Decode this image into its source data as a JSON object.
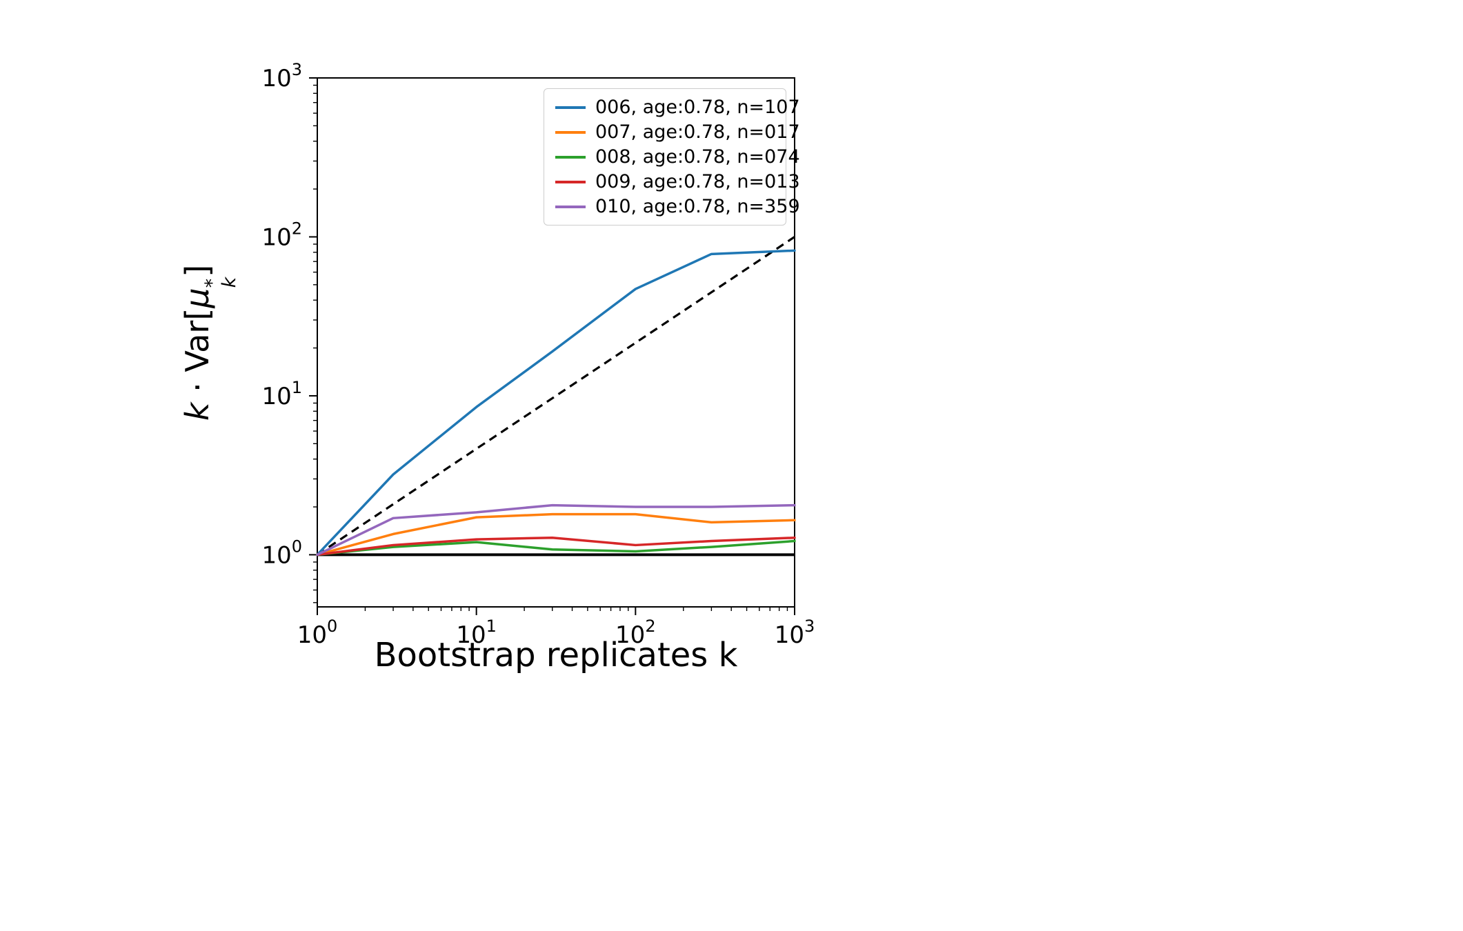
{
  "figure": {
    "background": "#ffffff"
  },
  "chart_data": {
    "type": "line",
    "title": "",
    "xlabel": "Bootstrap replicates k",
    "ylabel": "k · Var[μ*ₖ]",
    "ylabel_parts": {
      "pre": "k",
      "dot": " · ",
      "func": "Var[",
      "mu": "μ",
      "sup": "*",
      "sub": "k",
      "close": "]"
    },
    "x_scale": "log",
    "y_scale": "log",
    "xlim": [
      1,
      1000
    ],
    "ylim": [
      0.47,
      1000
    ],
    "x_ticks": [
      1,
      10,
      100,
      1000
    ],
    "y_ticks": [
      1,
      10,
      100,
      1000
    ],
    "tick_label_base": "10",
    "grid": false,
    "legend_position": "upper right",
    "x": [
      1,
      3,
      10,
      30,
      100,
      300,
      1000
    ],
    "series": [
      {
        "name": "006, age:0.78, n=107",
        "color": "#1f77b4",
        "values": [
          1.0,
          3.2,
          8.5,
          19,
          47,
          78,
          82
        ]
      },
      {
        "name": "007, age:0.78, n=017",
        "color": "#ff7f0e",
        "values": [
          1.0,
          1.35,
          1.72,
          1.8,
          1.8,
          1.6,
          1.65
        ]
      },
      {
        "name": "008, age:0.78, n=074",
        "color": "#2ca02c",
        "values": [
          1.0,
          1.12,
          1.2,
          1.08,
          1.05,
          1.12,
          1.22
        ]
      },
      {
        "name": "009, age:0.78, n=013",
        "color": "#d62728",
        "values": [
          1.0,
          1.15,
          1.25,
          1.28,
          1.15,
          1.22,
          1.28
        ]
      },
      {
        "name": "010, age:0.78, n=359",
        "color": "#9467bd",
        "values": [
          1.0,
          1.7,
          1.85,
          2.05,
          2.0,
          2.0,
          2.05
        ]
      }
    ],
    "reference_lines": [
      {
        "name": "linear-growth-dashed",
        "style": "dashed",
        "color": "#000000",
        "points": [
          [
            1,
            1
          ],
          [
            1000,
            100
          ]
        ]
      },
      {
        "name": "baseline-solid",
        "style": "solid",
        "color": "#000000",
        "points": [
          [
            1,
            1
          ],
          [
            1000,
            1
          ]
        ]
      }
    ]
  }
}
